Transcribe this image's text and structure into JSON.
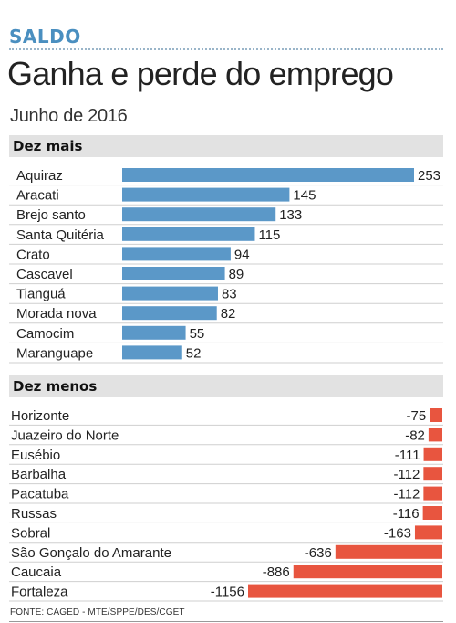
{
  "header": {
    "kicker": "SALDO",
    "title": "Ganha e perde do emprego",
    "subtitle": "Junho de 2016"
  },
  "source": "FONTE: CAGED - MTE/SPPE/DES/CGET",
  "colors": {
    "positive_bar": "#5b98c8",
    "negative_bar": "#e8553f",
    "kicker": "#4a8fc0",
    "section_header_bg": "#e2e2e2"
  },
  "chart_data": [
    {
      "type": "bar",
      "orientation": "horizontal",
      "title": "Dez mais",
      "categories": [
        "Aquiraz",
        "Aracati",
        "Brejo santo",
        "Santa Quitéria",
        "Crato",
        "Cascavel",
        "Tianguá",
        "Morada nova",
        "Camocim",
        "Maranguape"
      ],
      "values": [
        253,
        145,
        133,
        115,
        94,
        89,
        83,
        82,
        55,
        52
      ],
      "xlim": [
        0,
        253
      ],
      "grid": false,
      "legend": "none"
    },
    {
      "type": "bar",
      "orientation": "horizontal",
      "title": "Dez menos",
      "categories": [
        "Horizonte",
        "Juazeiro do Norte",
        "Eusébio",
        "Barbalha",
        "Pacatuba",
        "Russas",
        "Sobral",
        "São Gonçalo do Amarante",
        "Caucaia",
        "Fortaleza"
      ],
      "values": [
        -75,
        -82,
        -111,
        -112,
        -112,
        -116,
        -163,
        -636,
        -886,
        -1156
      ],
      "xlim": [
        -1156,
        0
      ],
      "grid": false,
      "legend": "none"
    }
  ]
}
